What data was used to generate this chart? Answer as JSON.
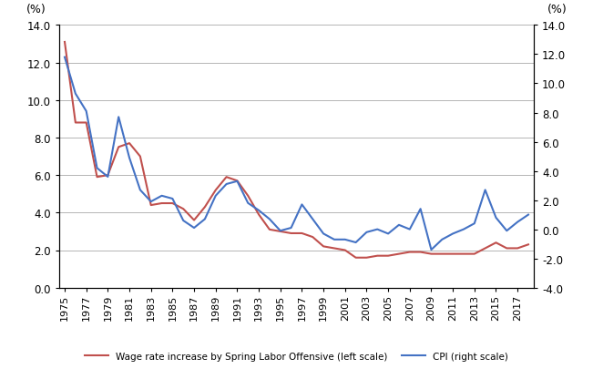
{
  "years": [
    1975,
    1976,
    1977,
    1978,
    1979,
    1980,
    1981,
    1982,
    1983,
    1984,
    1985,
    1986,
    1987,
    1988,
    1989,
    1990,
    1991,
    1992,
    1993,
    1994,
    1995,
    1996,
    1997,
    1998,
    1999,
    2000,
    2001,
    2002,
    2003,
    2004,
    2005,
    2006,
    2007,
    2008,
    2009,
    2010,
    2011,
    2012,
    2013,
    2014,
    2015,
    2016,
    2017,
    2018
  ],
  "wage": [
    13.1,
    8.8,
    8.8,
    5.9,
    6.0,
    7.5,
    7.7,
    7.0,
    4.4,
    4.5,
    4.5,
    4.2,
    3.6,
    4.3,
    5.2,
    5.9,
    5.7,
    4.9,
    3.9,
    3.1,
    3.0,
    2.9,
    2.9,
    2.7,
    2.2,
    2.1,
    2.0,
    1.6,
    1.6,
    1.7,
    1.7,
    1.8,
    1.9,
    1.9,
    1.8,
    1.8,
    1.8,
    1.8,
    1.8,
    2.1,
    2.4,
    2.1,
    2.1,
    2.3
  ],
  "cpi": [
    11.8,
    9.3,
    8.1,
    4.2,
    3.6,
    7.7,
    4.9,
    2.7,
    1.9,
    2.3,
    2.1,
    0.6,
    0.1,
    0.7,
    2.3,
    3.1,
    3.3,
    1.8,
    1.3,
    0.7,
    -0.1,
    0.1,
    1.7,
    0.7,
    -0.3,
    -0.7,
    -0.7,
    -0.9,
    -0.2,
    0.0,
    -0.3,
    0.3,
    0.0,
    1.4,
    -1.4,
    -0.7,
    -0.3,
    0.0,
    0.4,
    2.7,
    0.8,
    -0.1,
    0.5,
    1.0
  ],
  "wage_color": "#c0504d",
  "cpi_color": "#4472c4",
  "left_ylim": [
    0.0,
    14.0
  ],
  "right_ylim": [
    -4.0,
    14.0
  ],
  "left_yticks": [
    0.0,
    2.0,
    4.0,
    6.0,
    8.0,
    10.0,
    12.0,
    14.0
  ],
  "right_yticks": [
    -4.0,
    -2.0,
    0.0,
    2.0,
    4.0,
    6.0,
    8.0,
    10.0,
    12.0,
    14.0
  ],
  "label_left": "(%)",
  "label_right": "(%)",
  "legend_wage": "Wage rate increase by Spring Labor Offensive (left scale)",
  "legend_cpi": "CPI (right scale)",
  "x_tick_step": 2,
  "line_width": 1.5,
  "background_color": "#ffffff",
  "grid_color": "#aaaaaa"
}
